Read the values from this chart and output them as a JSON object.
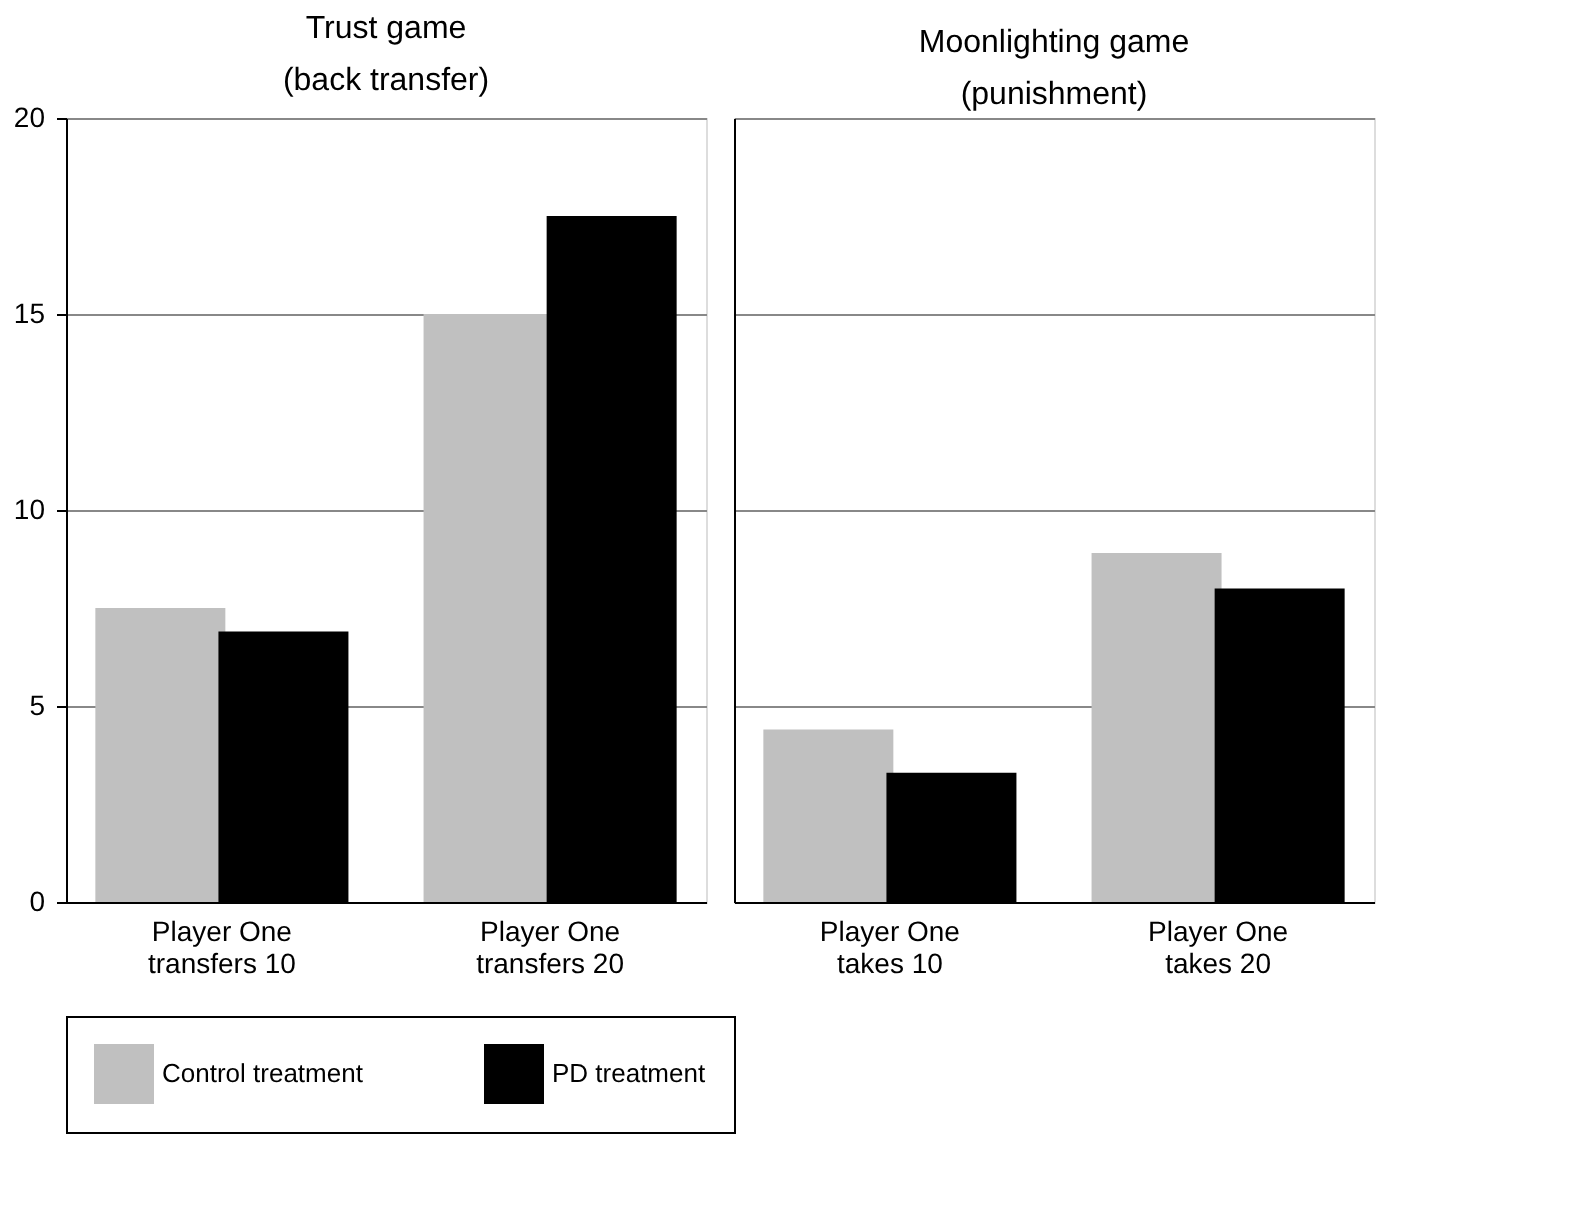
{
  "chart_data": [
    {
      "type": "bar",
      "title": "Trust game\n(back transfer)",
      "categories": [
        "Player One\ntransfers 10",
        "Player One\ntransfers 20"
      ],
      "series": [
        {
          "name": "Control treatment",
          "color": "#c0c0c0",
          "values": [
            7.5,
            15.0
          ]
        },
        {
          "name": "PD treatment",
          "color": "#000000",
          "values": [
            6.9,
            17.5
          ]
        }
      ],
      "ylim": [
        0,
        20
      ],
      "yticks": [
        0,
        5,
        10,
        15,
        20
      ],
      "grid": "y",
      "legend": "bottom"
    },
    {
      "type": "bar",
      "title": "Moonlighting game\n(punishment)",
      "categories": [
        "Player One\ntakes 10",
        "Player One\ntakes 20"
      ],
      "series": [
        {
          "name": "Control treatment",
          "color": "#c0c0c0",
          "values": [
            4.4,
            8.9
          ]
        },
        {
          "name": "PD treatment",
          "color": "#000000",
          "values": [
            3.3,
            8.0
          ]
        }
      ],
      "ylim": [
        0,
        20
      ],
      "yticks": [
        0,
        5,
        10,
        15,
        20
      ],
      "grid": "y",
      "legend": "bottom",
      "tick_labels": "x"
    }
  ]
}
